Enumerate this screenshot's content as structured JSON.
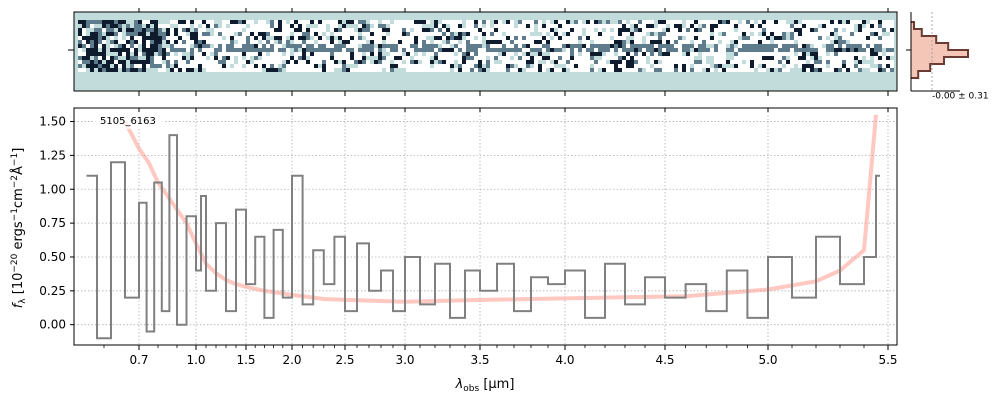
{
  "chart_data": [
    {
      "type": "heatmap",
      "panel": "2d-spectrum",
      "description_level": "spectral image with noisy columns; colormap white-to-dark slate",
      "colormap": [
        "#ffffff",
        "#c2dcdc",
        "#5e7c8c",
        "#0e1c2e"
      ],
      "background": "#c2dcdc"
    },
    {
      "type": "histogram",
      "panel": "profile",
      "label": "-0.00 ± 0.31",
      "profile_values": [
        0.05,
        0.18,
        0.42,
        0.62,
        0.95,
        0.55,
        0.32,
        0.12
      ],
      "colors": {
        "line": "#6b3a32",
        "fill": "#f4c6b8"
      }
    },
    {
      "type": "line",
      "panel": "1d-spectrum",
      "annotation": "5105_6163",
      "xlabel_main": "λ",
      "xlabel_sub": "obs",
      "xlabel_unit": "[μm]",
      "ylabel": "f_λ [10^-20 ergs^-1 cm^-2 Å^-1]",
      "ylabel_parts": {
        "f": "f",
        "sub": "λ",
        "pre": "[10",
        "exp1": "−20",
        "mid": " ergs",
        "exp2": "−1",
        "mid2": "cm",
        "exp3": "−2",
        "mid3": "Å",
        "exp4": "−1",
        "post": "]"
      },
      "ylim": [
        -0.15,
        1.6
      ],
      "yticks": [
        0.0,
        0.25,
        0.5,
        0.75,
        1.0,
        1.25,
        1.5
      ],
      "ytick_labels": [
        "0.00",
        "0.25",
        "0.50",
        "0.75",
        "1.00",
        "1.25",
        "1.50"
      ],
      "xlim_um": [
        0.52,
        5.52
      ],
      "xticks_major_um": [
        0.7,
        1.0,
        1.5,
        2.0,
        2.5,
        3.0,
        3.5,
        4.0,
        4.5,
        5.0,
        5.5
      ],
      "xtick_labels": [
        "0.7",
        "1.0",
        "1.5",
        "2.0",
        "2.5",
        "3.0",
        "3.5",
        "4.0",
        "4.5",
        "5.0",
        "5.5"
      ],
      "grid": true,
      "series": [
        {
          "role": "data",
          "color": "#808080",
          "x": [
            0.55,
            0.58,
            0.62,
            0.66,
            0.7,
            0.74,
            0.78,
            0.82,
            0.86,
            0.9,
            0.95,
            1.0,
            1.05,
            1.1,
            1.2,
            1.3,
            1.4,
            1.5,
            1.6,
            1.7,
            1.8,
            1.9,
            2.0,
            2.1,
            2.2,
            2.3,
            2.4,
            2.5,
            2.6,
            2.7,
            2.8,
            2.9,
            3.0,
            3.1,
            3.2,
            3.3,
            3.4,
            3.5,
            3.6,
            3.7,
            3.8,
            3.9,
            4.0,
            4.1,
            4.2,
            4.3,
            4.4,
            4.5,
            4.6,
            4.7,
            4.8,
            4.9,
            5.0,
            5.1,
            5.2,
            5.3,
            5.4,
            5.45
          ],
          "y": [
            1.1,
            -0.1,
            1.2,
            0.2,
            0.9,
            -0.05,
            1.05,
            0.1,
            1.4,
            0.0,
            0.8,
            0.4,
            0.95,
            0.25,
            0.75,
            0.1,
            0.85,
            0.3,
            0.65,
            0.05,
            0.7,
            0.2,
            1.1,
            0.15,
            0.55,
            0.3,
            0.65,
            0.1,
            0.6,
            0.25,
            0.4,
            0.1,
            0.5,
            0.15,
            0.45,
            0.05,
            0.4,
            0.25,
            0.45,
            0.1,
            0.35,
            0.3,
            0.4,
            0.05,
            0.45,
            0.15,
            0.35,
            0.2,
            0.3,
            0.1,
            0.4,
            0.05,
            0.5,
            0.2,
            0.65,
            0.3,
            0.5,
            1.1
          ]
        },
        {
          "role": "model",
          "color": "#ff9a8e",
          "x": [
            0.66,
            0.7,
            0.75,
            0.8,
            0.85,
            0.9,
            0.95,
            1.0,
            1.1,
            1.2,
            1.3,
            1.4,
            1.5,
            1.7,
            2.0,
            2.3,
            2.6,
            3.0,
            3.4,
            3.8,
            4.2,
            4.6,
            5.0,
            5.2,
            5.3,
            5.4,
            5.45
          ],
          "y": [
            1.5,
            1.3,
            1.2,
            1.05,
            0.95,
            0.85,
            0.75,
            0.6,
            0.45,
            0.38,
            0.33,
            0.3,
            0.28,
            0.25,
            0.22,
            0.19,
            0.18,
            0.17,
            0.18,
            0.19,
            0.2,
            0.21,
            0.26,
            0.32,
            0.4,
            0.55,
            1.55
          ]
        }
      ]
    }
  ]
}
